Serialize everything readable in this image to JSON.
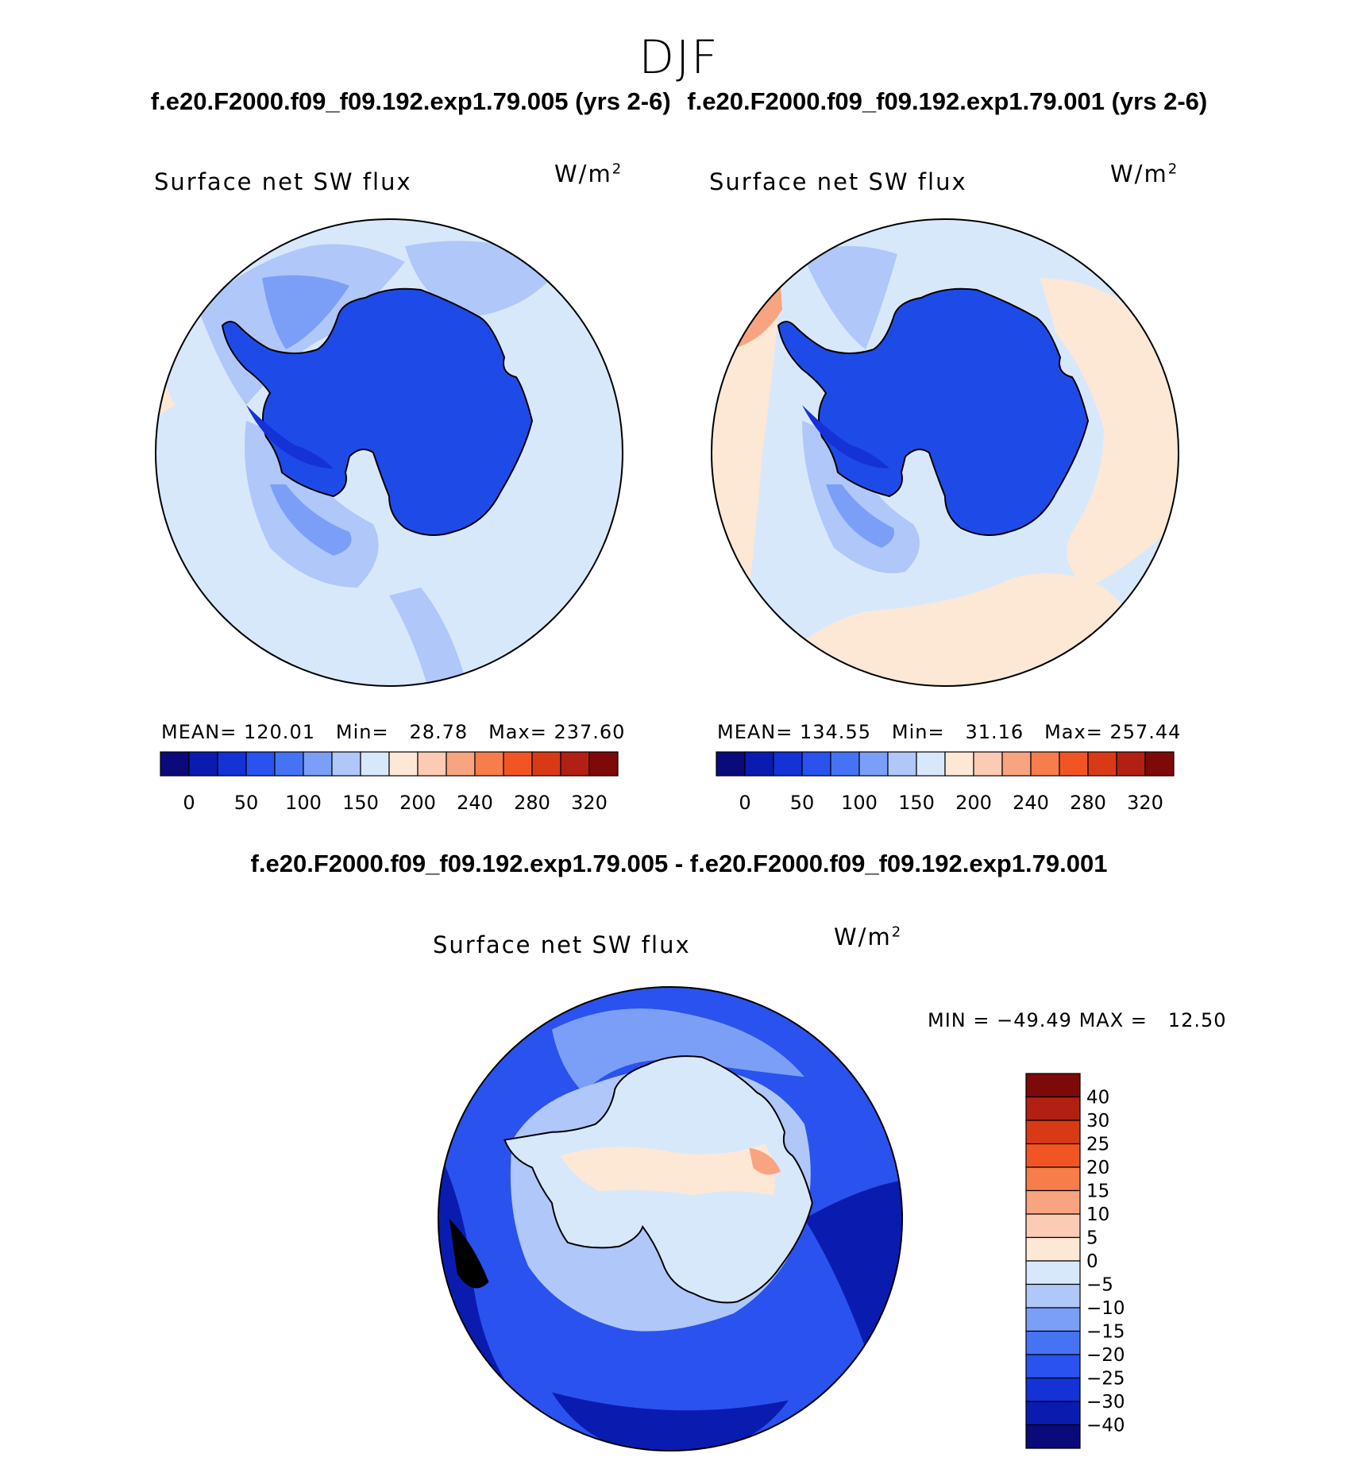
{
  "season": "DJF",
  "case_titles": [
    "f.e20.F2000.f09_f09.192.exp1.79.005 (yrs 2-6)",
    "f.e20.F2000.f09_f09.192.exp1.79.001 (yrs 2-6)"
  ],
  "diff_title": "f.e20.F2000.f09_f09.192.exp1.79.005 - f.e20.F2000.f09_f09.192.exp1.79.001",
  "panels": [
    {
      "variable": "Surface net SW flux",
      "units": "W/m",
      "units_sup": "2",
      "stats": {
        "mean_label": "MEAN=",
        "mean": "120.01",
        "min_label": "Min=",
        "min": "28.78",
        "max_label": "Max=",
        "max": "237.60"
      }
    },
    {
      "variable": "Surface net SW flux",
      "units": "W/m",
      "units_sup": "2",
      "stats": {
        "mean_label": "MEAN=",
        "mean": "134.55",
        "min_label": "Min=",
        "min": "31.16",
        "max_label": "Max=",
        "max": "257.44"
      }
    }
  ],
  "diff_panel": {
    "variable": "Surface net SW flux",
    "units": "W/m",
    "units_sup": "2",
    "stats": {
      "min_label": "MIN =",
      "min": "−49.49",
      "max_label": "MAX =",
      "max": "12.50"
    }
  },
  "colorbar_main": {
    "colors": [
      "#0a0a7a",
      "#0a1cb0",
      "#1432d6",
      "#2a52ee",
      "#4673f4",
      "#7b9ff7",
      "#afc7f9",
      "#d8e8fb",
      "#fde8d6",
      "#fbcbb3",
      "#f8a480",
      "#f77d4b",
      "#f25524",
      "#d93a16",
      "#b12012",
      "#7d0909"
    ],
    "labels": [
      "0",
      "50",
      "100",
      "150",
      "200",
      "240",
      "280",
      "320"
    ]
  },
  "colorbar_diff": {
    "colors": [
      "#7d0909",
      "#b12012",
      "#d93a16",
      "#f25524",
      "#f77d4b",
      "#f8a480",
      "#fbcbb3",
      "#fde8d6",
      "#d8e8fb",
      "#afc7f9",
      "#7b9ff7",
      "#4673f4",
      "#2a52ee",
      "#1432d6",
      "#0a1cb0",
      "#0a0a7a"
    ],
    "labels": [
      "40",
      "30",
      "25",
      "20",
      "15",
      "10",
      "5",
      "0",
      "−5",
      "−10",
      "−15",
      "−20",
      "−25",
      "−30",
      "−40"
    ]
  },
  "map_colors": {
    "land_dark": "#1e4be8",
    "land_deep": "#1432d6",
    "ocean_light": "#d8e8fb",
    "ocean_mid": "#afc7f9",
    "ocean_blue": "#7b9ff7",
    "warm": "#fde8d6",
    "warm2": "#f8a480",
    "diff_deep": "#1432d6",
    "diff_dark": "#0a1cb0",
    "diff_mid": "#2a52ee",
    "diff_light": "#d8e8fb"
  }
}
